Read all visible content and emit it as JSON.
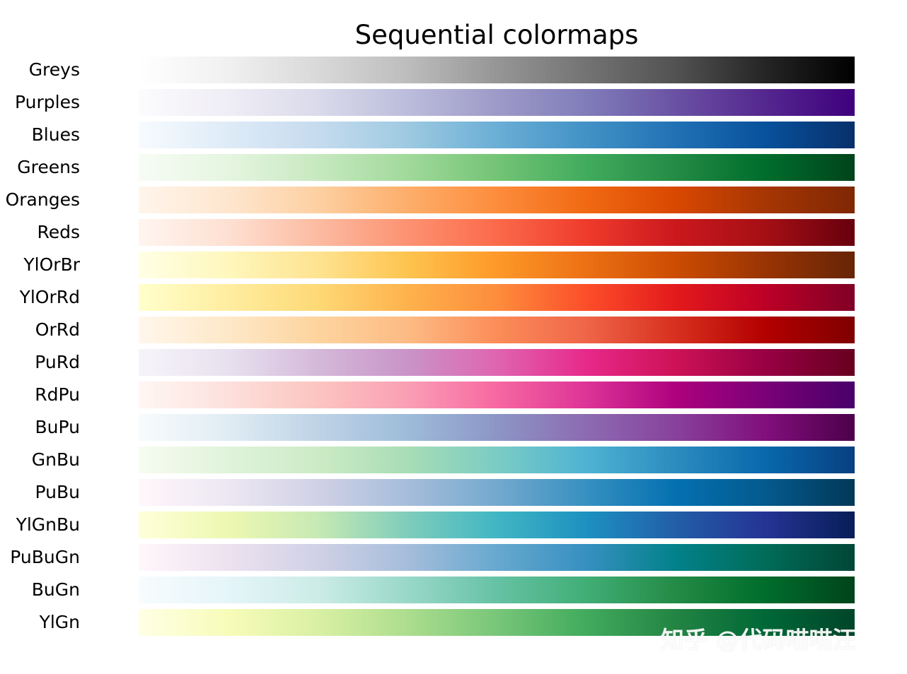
{
  "chart_data": {
    "type": "colormap_swatches",
    "title": "Sequential colormaps",
    "xlabel": "",
    "ylabel": "",
    "grid": false,
    "colormaps": [
      {
        "name": "Greys",
        "colors": [
          "#ffffff",
          "#f0f0f0",
          "#d9d9d9",
          "#bdbdbd",
          "#969696",
          "#737373",
          "#525252",
          "#252525",
          "#000000"
        ]
      },
      {
        "name": "Purples",
        "colors": [
          "#fcfbfd",
          "#efedf5",
          "#dadaeb",
          "#bcbddc",
          "#9e9ac8",
          "#807dba",
          "#6a51a3",
          "#54278f",
          "#3f007d"
        ]
      },
      {
        "name": "Blues",
        "colors": [
          "#f7fbff",
          "#deebf7",
          "#c6dbef",
          "#9ecae1",
          "#6baed6",
          "#4292c6",
          "#2171b5",
          "#08519c",
          "#08306b"
        ]
      },
      {
        "name": "Greens",
        "colors": [
          "#f7fcf5",
          "#e5f5e0",
          "#c7e9c0",
          "#a1d99b",
          "#74c476",
          "#41ab5d",
          "#238b45",
          "#006d2c",
          "#00441b"
        ]
      },
      {
        "name": "Oranges",
        "colors": [
          "#fff5eb",
          "#fee6ce",
          "#fdd0a2",
          "#fdae6b",
          "#fd8d3c",
          "#f16913",
          "#d94801",
          "#a63603",
          "#7f2704"
        ]
      },
      {
        "name": "Reds",
        "colors": [
          "#fff5f0",
          "#fee0d2",
          "#fcbba1",
          "#fc9272",
          "#fb6a4a",
          "#ef3b2c",
          "#cb181d",
          "#a50f15",
          "#67000d"
        ]
      },
      {
        "name": "YlOrBr",
        "colors": [
          "#ffffe5",
          "#fff7bc",
          "#fee391",
          "#fec44f",
          "#fe9929",
          "#ec7014",
          "#cc4c02",
          "#993404",
          "#662506"
        ]
      },
      {
        "name": "YlOrRd",
        "colors": [
          "#ffffcc",
          "#ffeda0",
          "#fed976",
          "#feb24c",
          "#fd8d3c",
          "#fc4e2a",
          "#e31a1c",
          "#bd0026",
          "#800026"
        ]
      },
      {
        "name": "OrRd",
        "colors": [
          "#fff7ec",
          "#fee8c8",
          "#fdd49e",
          "#fdbb84",
          "#fc8d59",
          "#ef6548",
          "#d7301f",
          "#b30000",
          "#7f0000"
        ]
      },
      {
        "name": "PuRd",
        "colors": [
          "#f7f4f9",
          "#e7e1ef",
          "#d4b9da",
          "#c994c7",
          "#df65b0",
          "#e7298a",
          "#ce1256",
          "#980043",
          "#67001f"
        ]
      },
      {
        "name": "RdPu",
        "colors": [
          "#fff7f3",
          "#fde0dd",
          "#fcc5c0",
          "#fa9fb5",
          "#f768a1",
          "#dd3497",
          "#ae017e",
          "#7a0177",
          "#49006a"
        ]
      },
      {
        "name": "BuPu",
        "colors": [
          "#f7fcfd",
          "#e0ecf4",
          "#bfd3e6",
          "#9ebcda",
          "#8c96c6",
          "#8c6bb1",
          "#88419d",
          "#810f7c",
          "#4d004b"
        ]
      },
      {
        "name": "GnBu",
        "colors": [
          "#f7fcf0",
          "#e0f3db",
          "#ccebc5",
          "#a8ddb5",
          "#7bccc4",
          "#4eb3d3",
          "#2b8cbe",
          "#0868ac",
          "#084081"
        ]
      },
      {
        "name": "PuBu",
        "colors": [
          "#fff7fb",
          "#ece7f2",
          "#d0d1e6",
          "#a6bddb",
          "#74a9cf",
          "#3690c0",
          "#0570b0",
          "#045a8d",
          "#023858"
        ]
      },
      {
        "name": "YlGnBu",
        "colors": [
          "#ffffd9",
          "#edf8b1",
          "#c7e9b4",
          "#7fcdbb",
          "#41b6c4",
          "#1d91c0",
          "#225ea8",
          "#253494",
          "#081d58"
        ]
      },
      {
        "name": "PuBuGn",
        "colors": [
          "#fff7fb",
          "#ece2f0",
          "#d0d1e6",
          "#a6bddb",
          "#67a9cf",
          "#3690c0",
          "#02818a",
          "#016c59",
          "#014636"
        ]
      },
      {
        "name": "BuGn",
        "colors": [
          "#f7fcfd",
          "#e5f5f9",
          "#ccece6",
          "#99d8c9",
          "#66c2a4",
          "#41ae76",
          "#238b45",
          "#006d2c",
          "#00441b"
        ]
      },
      {
        "name": "YlGn",
        "colors": [
          "#ffffe5",
          "#f7fcb9",
          "#d9f0a3",
          "#addd8e",
          "#78c679",
          "#41ab5d",
          "#238443",
          "#006837",
          "#004529"
        ]
      }
    ]
  },
  "watermark": "知乎 @代码喵喵汪"
}
